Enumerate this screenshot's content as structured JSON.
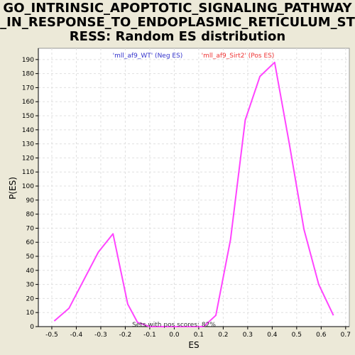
{
  "title_lines": [
    "GO_INTRINSIC_APOPTOTIC_SIGNALING_PATHWAY",
    "_IN_RESPONSE_TO_ENDOPLASMIC_RETICULUM_ST",
    "RESS: Random ES distribution"
  ],
  "chart_data": {
    "type": "line",
    "title": "GO_INTRINSIC_APOPTOTIC_SIGNALING_PATHWAY_IN_RESPONSE_TO_ENDOPLASMIC_RETICULUM_STRESS: Random ES distribution",
    "xlabel": "ES",
    "ylabel": "P(ES)",
    "xlim": [
      -0.555,
      0.715
    ],
    "ylim": [
      0,
      198
    ],
    "xticks": [
      -0.5,
      -0.4,
      -0.3,
      -0.2,
      -0.1,
      0.0,
      0.1,
      0.2,
      0.3,
      0.4,
      0.5,
      0.6,
      0.7
    ],
    "xtick_labels": [
      "-0.5",
      "-0.4",
      "-0.3",
      "-0.2",
      "-0.1",
      "0.0",
      "0.1",
      "0.2",
      "0.3",
      "0.4",
      "0.5",
      "0.6",
      "0.7"
    ],
    "yticks": [
      0,
      10,
      20,
      30,
      40,
      50,
      60,
      70,
      80,
      90,
      100,
      110,
      120,
      130,
      140,
      150,
      160,
      170,
      180,
      190
    ],
    "grid": true,
    "legend": [
      {
        "label": "'mll_af9_WT' (Neg ES)",
        "color": "#3333cc"
      },
      {
        "label": "'mll_af9_Sirt2' (Pos ES)",
        "color": "#ee3333"
      }
    ],
    "legend_placement": "top-center",
    "annotation": "Sets with pos scores: 82%",
    "series": [
      {
        "color": "#ff44ff",
        "x": [
          -0.49,
          -0.43,
          -0.31,
          -0.25,
          -0.19,
          -0.15,
          -0.1,
          0.0,
          0.12,
          0.17,
          0.23,
          0.29,
          0.35,
          0.41,
          0.47,
          0.53,
          0.59,
          0.65
        ],
        "y": [
          4,
          13,
          53,
          66,
          16,
          3,
          0,
          0,
          0,
          8,
          62,
          147,
          178,
          188,
          130,
          69,
          30,
          8
        ]
      }
    ]
  }
}
